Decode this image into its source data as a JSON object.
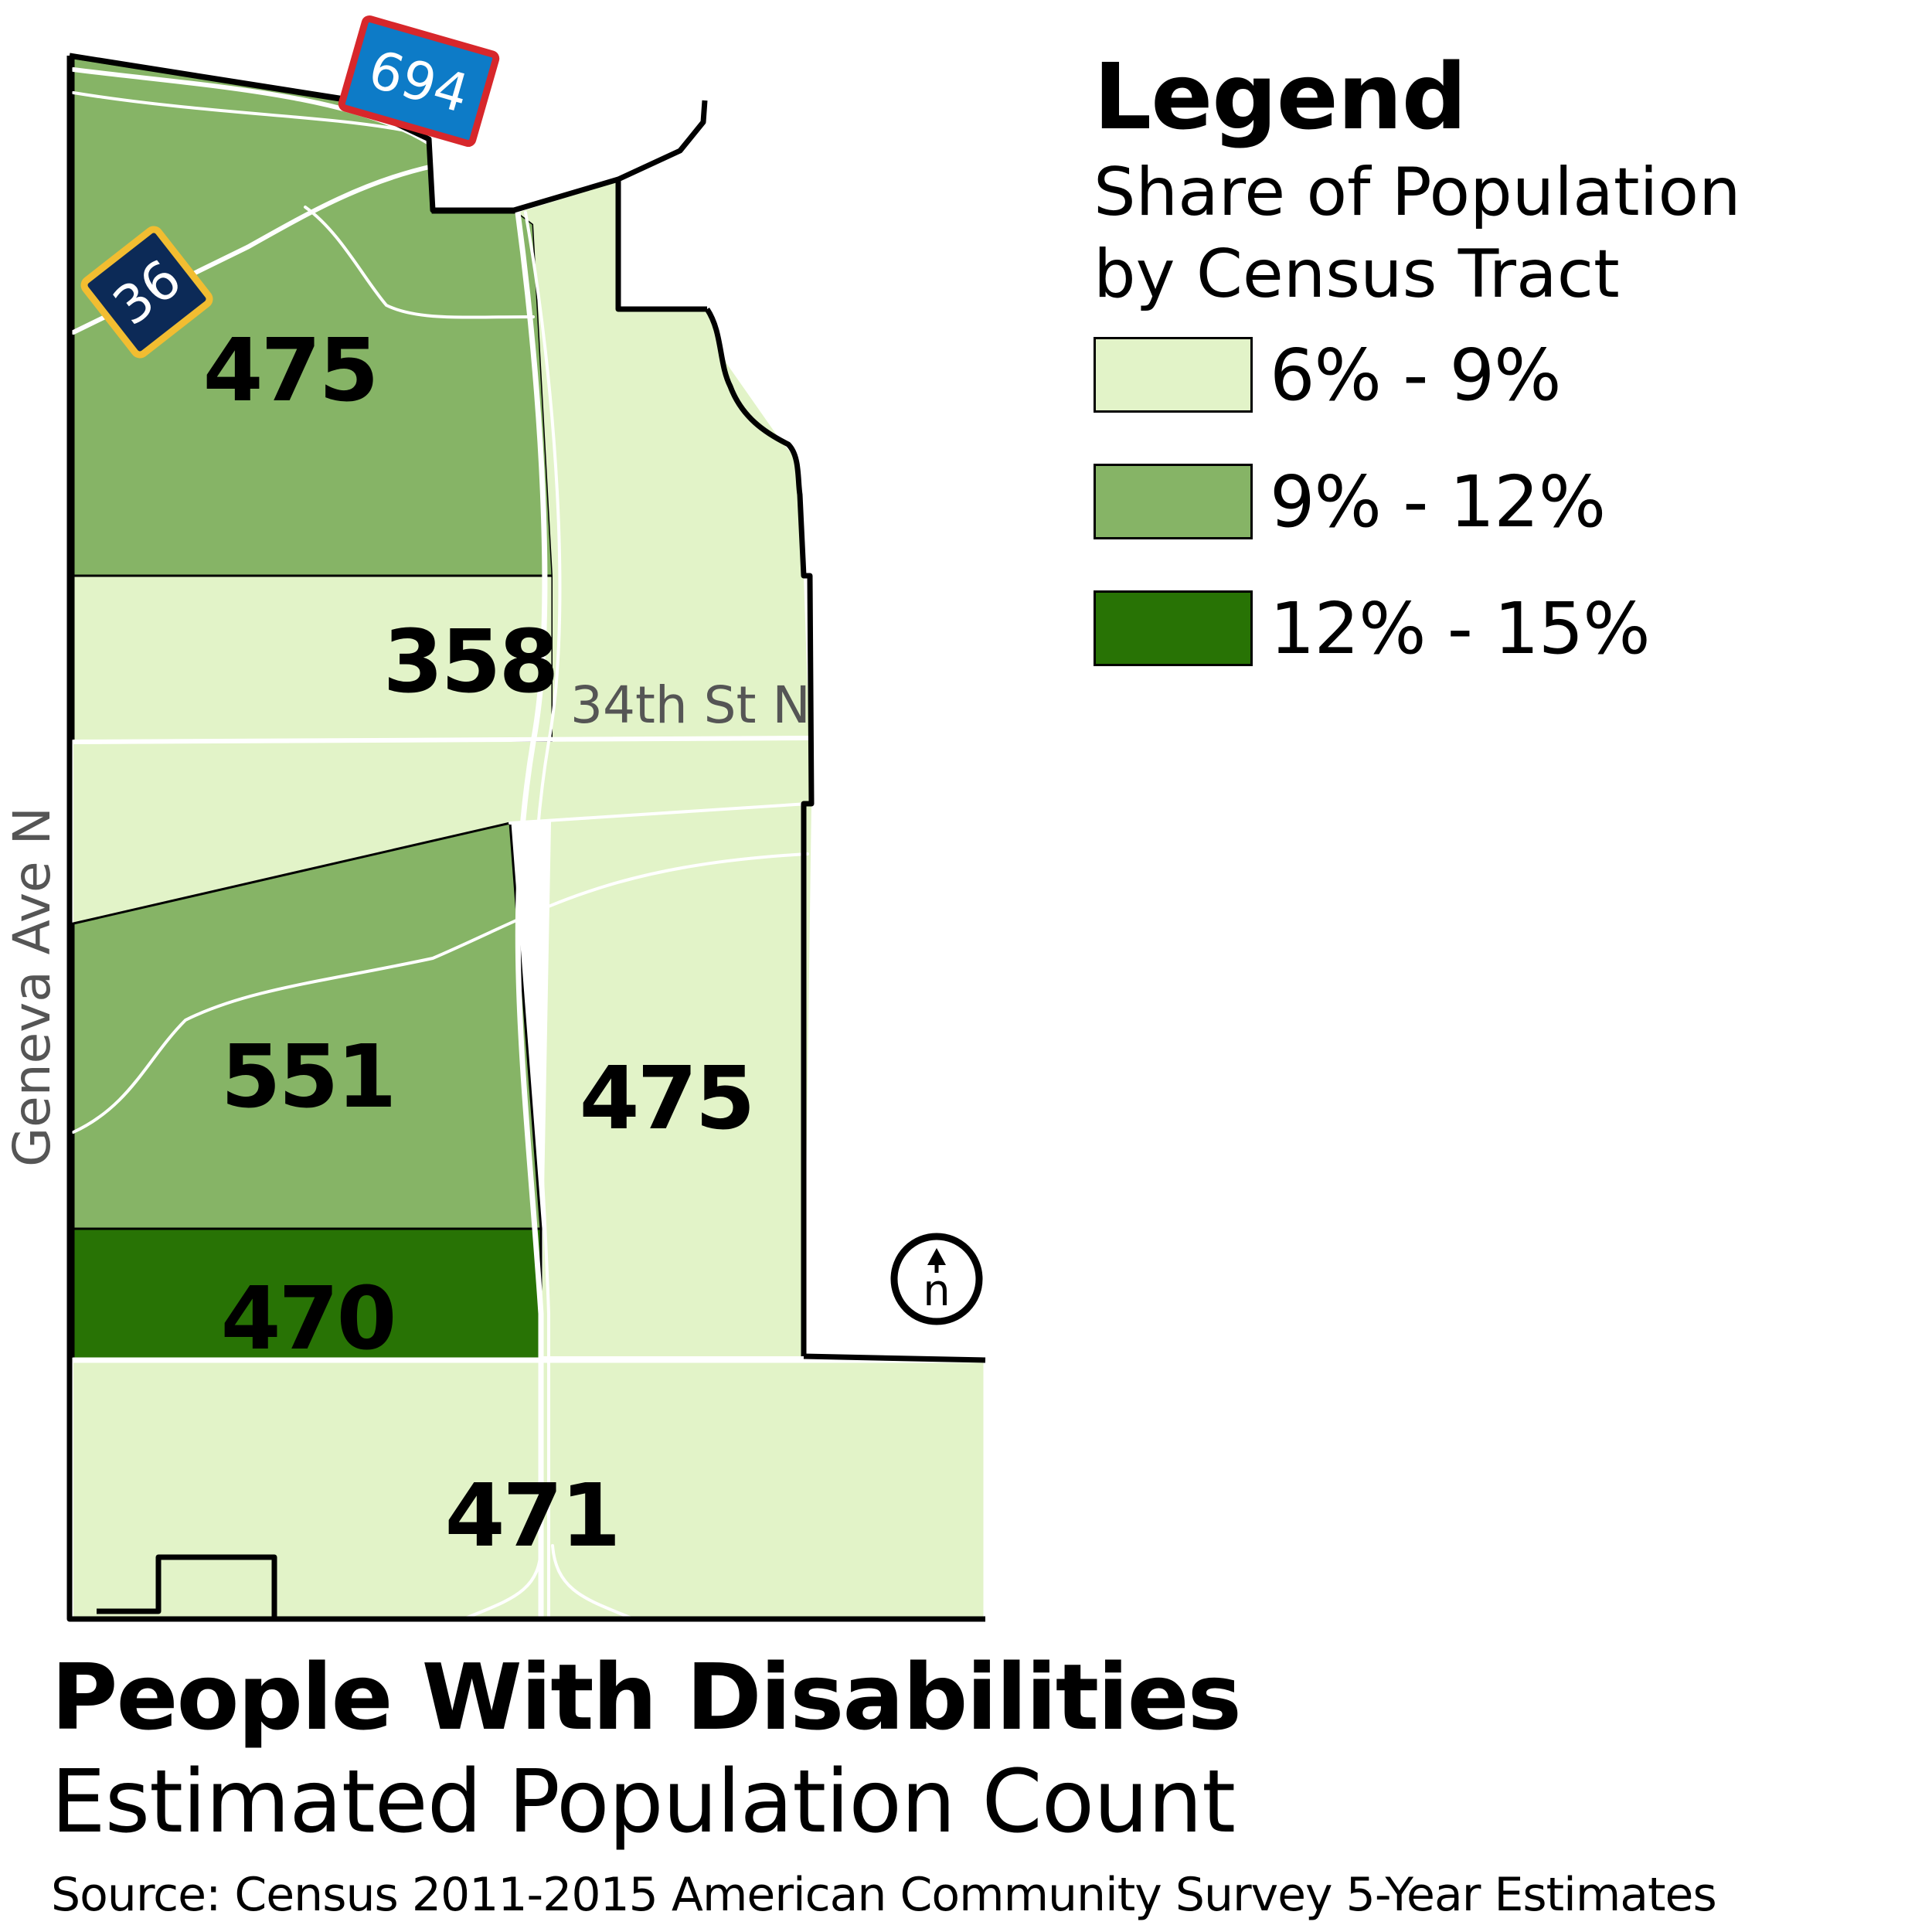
{
  "map": {
    "tracts": [
      {
        "label": "475",
        "share_class": "9% - 12%"
      },
      {
        "label": "358",
        "share_class": "6% - 9%"
      },
      {
        "label": "551",
        "share_class": "9% - 12%"
      },
      {
        "label": "475",
        "share_class": "6% - 9%"
      },
      {
        "label": "470",
        "share_class": "12% - 15%"
      },
      {
        "label": "471",
        "share_class": "6% - 9%"
      }
    ],
    "street_labels": {
      "street_34th": "34th St N",
      "geneva": "Geneva Ave N"
    },
    "highway_shields": {
      "i694": "694",
      "hwy36": "36"
    },
    "north_arrow": "n",
    "colors": {
      "light": "#e2f3c8",
      "medium": "#86b466",
      "dark": "#287305",
      "i694_fill": "#0d7bc7",
      "i694_border": "#d7272b",
      "hwy36_fill": "#0c2a57",
      "hwy36_border": "#f2bd31",
      "road": "#ffffff",
      "street_text": "#555555"
    }
  },
  "legend": {
    "title": "Legend",
    "subtitle_line1": "Share of Population",
    "subtitle_line2": "by Census Tract",
    "items": [
      {
        "label": "6% - 9%",
        "color": "#e2f3c8"
      },
      {
        "label": "9% - 12%",
        "color": "#86b466"
      },
      {
        "label": "12% - 15%",
        "color": "#287305"
      }
    ]
  },
  "title": {
    "main": "People With Disabilities",
    "sub": "Estimated Population Count",
    "source": "Source: Census 2011-2015 American Community Survey 5-Year Estimates"
  }
}
